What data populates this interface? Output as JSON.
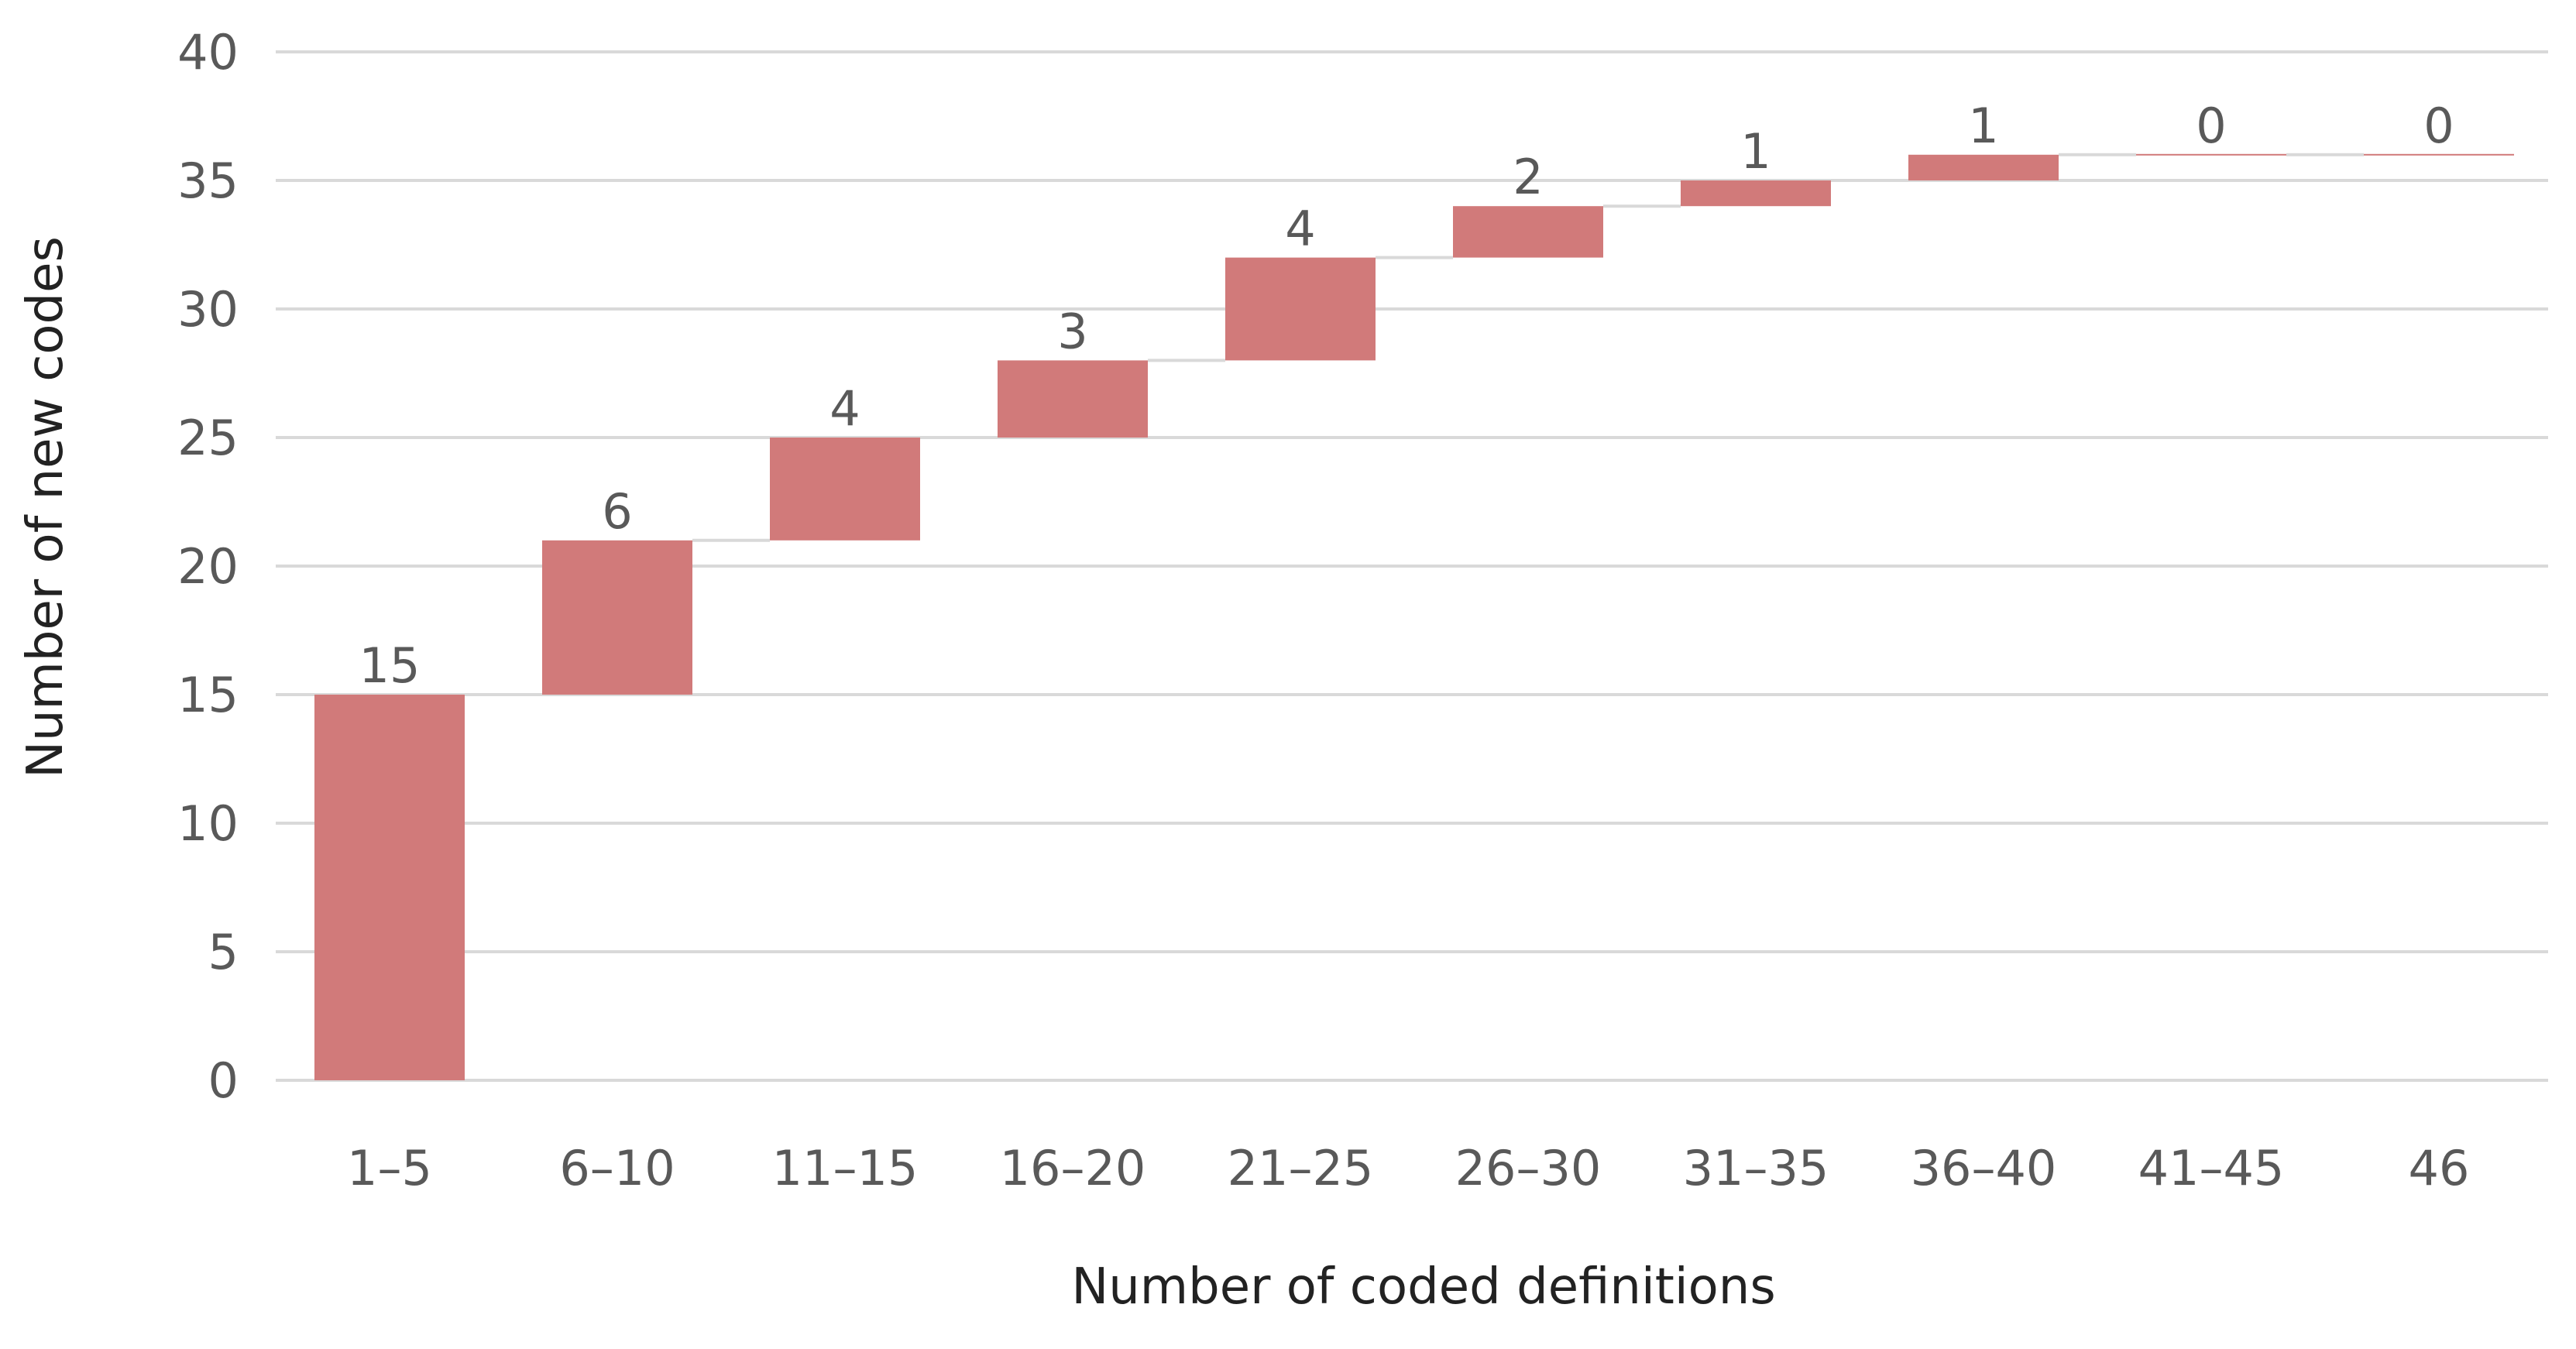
{
  "chart_data": {
    "type": "waterfall",
    "title": "",
    "xlabel": "Number of coded definitions",
    "ylabel": "Number of new codes",
    "ylim": [
      0,
      40
    ],
    "yticks": [
      0,
      5,
      10,
      15,
      20,
      25,
      30,
      35,
      40
    ],
    "grid": true,
    "categories": [
      "1–5",
      "6–10",
      "11–15",
      "16–20",
      "21–25",
      "26–30",
      "31–35",
      "36–40",
      "41–45",
      "46"
    ],
    "values": [
      15,
      6,
      4,
      3,
      4,
      2,
      1,
      1,
      0,
      0
    ],
    "data_labels": [
      "15",
      "6",
      "4",
      "3",
      "4",
      "2",
      "1",
      "1",
      "0",
      "0"
    ],
    "bar_color": "#d17a7a",
    "gridline_color": "#d9d9d9"
  }
}
